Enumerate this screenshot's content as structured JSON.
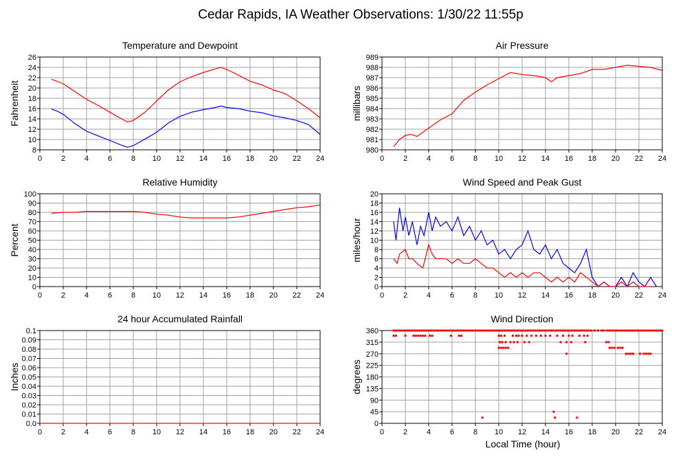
{
  "page_title": "Cedar Rapids, IA Weather Observations: 1/30/22 11:55p",
  "x_axis_label": "Local Time (hour)",
  "colors": {
    "red": "#ff0000",
    "blue": "#0000ff",
    "grid": "#a0a0a0"
  },
  "chart_data": [
    {
      "id": "temp",
      "type": "line",
      "title": "Temperature and Dewpoint",
      "xlabel": "",
      "ylabel": "Fahrenheit",
      "xlim": [
        0,
        24
      ],
      "ylim": [
        8,
        26
      ],
      "xticks": [
        0,
        2,
        4,
        6,
        8,
        10,
        12,
        14,
        16,
        18,
        20,
        22,
        24
      ],
      "yticks": [
        8,
        10,
        12,
        14,
        16,
        18,
        20,
        22,
        24,
        26
      ],
      "grid": true,
      "series": [
        {
          "color": "#ff0000",
          "x": [
            1,
            2,
            3,
            4,
            5,
            6,
            7,
            7.5,
            8,
            9,
            9.8,
            10,
            11,
            12,
            13,
            14,
            15,
            15.5,
            16,
            17,
            18,
            19,
            20,
            21,
            22,
            23,
            24
          ],
          "y": [
            21.7,
            20.8,
            19.3,
            17.8,
            16.6,
            15.3,
            14.0,
            13.4,
            13.7,
            15.3,
            17.0,
            17.5,
            19.6,
            21.2,
            22.2,
            23.0,
            23.7,
            24.0,
            23.6,
            22.5,
            21.3,
            20.6,
            19.6,
            18.9,
            17.5,
            16.0,
            14.2
          ]
        },
        {
          "color": "#0000ff",
          "x": [
            1,
            1.5,
            2,
            3,
            4,
            5,
            6,
            7,
            7.5,
            8,
            9,
            10,
            11,
            12,
            13,
            14,
            15,
            15.5,
            16,
            17,
            18,
            19,
            20,
            21,
            22,
            23,
            24
          ],
          "y": [
            15.9,
            15.5,
            14.9,
            13.1,
            11.6,
            10.7,
            9.8,
            8.9,
            8.5,
            8.8,
            10.1,
            11.4,
            13.2,
            14.5,
            15.3,
            15.8,
            16.2,
            16.5,
            16.2,
            16.0,
            15.5,
            15.2,
            14.6,
            14.2,
            13.7,
            12.9,
            11.0
          ]
        }
      ]
    },
    {
      "id": "pressure",
      "type": "line",
      "title": "Air Pressure",
      "xlabel": "",
      "ylabel": "millibars",
      "xlim": [
        0,
        24
      ],
      "ylim": [
        980,
        989
      ],
      "xticks": [
        0,
        2,
        4,
        6,
        8,
        10,
        12,
        14,
        16,
        18,
        20,
        22,
        24
      ],
      "yticks": [
        980,
        981,
        982,
        983,
        984,
        985,
        986,
        987,
        988,
        989
      ],
      "grid": true,
      "series": [
        {
          "color": "#ff0000",
          "x": [
            1,
            1.5,
            2,
            2.5,
            3,
            4,
            5,
            6,
            7,
            8,
            9,
            10,
            11,
            12,
            13,
            14,
            14.5,
            15,
            16,
            17,
            18,
            19,
            20,
            21,
            22,
            23,
            24
          ],
          "y": [
            980.3,
            981.0,
            981.4,
            981.5,
            981.3,
            982.1,
            982.9,
            983.5,
            984.8,
            985.6,
            986.3,
            986.9,
            987.5,
            987.3,
            987.2,
            987.0,
            986.6,
            987.0,
            987.2,
            987.4,
            987.8,
            987.8,
            988.0,
            988.2,
            988.1,
            988.0,
            987.7
          ]
        }
      ]
    },
    {
      "id": "humidity",
      "type": "line",
      "title": "Relative Humidity",
      "xlabel": "",
      "ylabel": "Percent",
      "xlim": [
        0,
        24
      ],
      "ylim": [
        0,
        100
      ],
      "xticks": [
        0,
        2,
        4,
        6,
        8,
        10,
        12,
        14,
        16,
        18,
        20,
        22,
        24
      ],
      "yticks": [
        0,
        10,
        20,
        30,
        40,
        50,
        60,
        70,
        80,
        90,
        100
      ],
      "grid": true,
      "series": [
        {
          "color": "#ff0000",
          "x": [
            1,
            2,
            3,
            4,
            5,
            6,
            7,
            8,
            9,
            10,
            11,
            12,
            13,
            14,
            15,
            16,
            17,
            18,
            19,
            20,
            21,
            22,
            23,
            24
          ],
          "y": [
            79,
            80,
            80,
            81,
            81,
            81,
            81,
            81,
            80,
            78,
            77,
            75,
            74,
            74,
            74,
            74,
            75,
            77,
            79,
            81,
            83,
            85,
            86,
            88
          ]
        }
      ]
    },
    {
      "id": "wind",
      "type": "line",
      "title": "Wind Speed and Peak Gust",
      "xlabel": "",
      "ylabel": "miles/hour",
      "xlim": [
        0,
        24
      ],
      "ylim": [
        0,
        20
      ],
      "xticks": [
        0,
        2,
        4,
        6,
        8,
        10,
        12,
        14,
        16,
        18,
        20,
        22,
        24
      ],
      "yticks": [
        0,
        2,
        4,
        6,
        8,
        10,
        12,
        14,
        16,
        18,
        20
      ],
      "grid": true,
      "series": [
        {
          "color": "#0000ff",
          "x": [
            1,
            1.2,
            1.5,
            1.8,
            2,
            2.3,
            2.6,
            3,
            3.3,
            3.6,
            4,
            4.3,
            4.6,
            5,
            5.5,
            6,
            6.5,
            7,
            7.5,
            8,
            8.5,
            9,
            9.5,
            10,
            10.5,
            11,
            11.5,
            12,
            12.5,
            13,
            13.5,
            14,
            14.5,
            15,
            15.5,
            16,
            16.5,
            17,
            17.5,
            18,
            18.5,
            19,
            19.5,
            20,
            20.5,
            21,
            21.5,
            22,
            22.5,
            23,
            23.5
          ],
          "y": [
            14,
            10,
            17,
            12,
            15,
            11,
            14,
            9,
            13,
            11,
            16,
            12,
            15,
            13,
            14,
            12,
            15,
            11,
            13,
            10,
            12,
            9,
            10,
            7,
            8,
            6,
            8,
            9,
            12,
            8,
            7,
            9,
            6,
            8,
            5,
            4,
            3,
            5,
            8,
            2,
            0,
            1,
            0,
            0,
            2,
            0,
            3,
            1,
            0,
            2,
            0
          ]
        },
        {
          "color": "#ff0000",
          "x": [
            1,
            1.3,
            1.5,
            2,
            2.3,
            2.6,
            3,
            3.5,
            4,
            4.3,
            4.6,
            5,
            5.5,
            6,
            6.5,
            7,
            7.5,
            8,
            8.5,
            9,
            9.5,
            10,
            10.5,
            11,
            11.5,
            12,
            12.5,
            13,
            13.5,
            14,
            14.5,
            15,
            15.5,
            16,
            16.5,
            17,
            17.5,
            18,
            18.5,
            19,
            19.5,
            20,
            20.5,
            21,
            21.5,
            22,
            22.5,
            23
          ],
          "y": [
            6,
            5,
            7,
            8,
            6,
            6,
            5,
            4,
            9,
            7,
            6,
            6,
            6,
            5,
            6,
            5,
            5,
            6,
            5,
            4,
            4,
            3,
            2,
            3,
            2,
            3,
            2,
            3,
            3,
            2,
            1,
            2,
            1,
            2,
            1,
            3,
            2,
            1,
            0,
            1,
            0,
            0,
            1,
            0,
            1,
            0,
            0,
            0
          ]
        }
      ]
    },
    {
      "id": "rain",
      "type": "line",
      "title": "24 hour Accumulated Rainfall",
      "xlabel": "",
      "ylabel": "Inches",
      "xlim": [
        0,
        24
      ],
      "ylim": [
        0,
        0.1
      ],
      "xticks": [
        0,
        2,
        4,
        6,
        8,
        10,
        12,
        14,
        16,
        18,
        20,
        22,
        24
      ],
      "yticks": [
        "0.0",
        "0.01",
        "0.02",
        "0.03",
        "0.04",
        "0.05",
        "0.06",
        "0.07",
        "0.08",
        "0.09",
        "0.1"
      ],
      "grid": true,
      "series": [
        {
          "color": "#ff0000",
          "x": [
            0,
            24
          ],
          "y": [
            0,
            0
          ]
        }
      ]
    },
    {
      "id": "direction",
      "type": "scatter",
      "title": "Wind Direction",
      "xlabel": "Local Time (hour)",
      "ylabel": "degrees",
      "xlim": [
        0,
        24
      ],
      "ylim": [
        0,
        360
      ],
      "xticks": [
        0,
        2,
        4,
        6,
        8,
        10,
        12,
        14,
        16,
        18,
        20,
        22,
        24
      ],
      "yticks": [
        0,
        45,
        90,
        135,
        180,
        225,
        270,
        315,
        360
      ],
      "grid": true,
      "series": [
        {
          "color": "#ff0000",
          "x": [
            1.0,
            1.1,
            1.2,
            1.4,
            1.6,
            1.8,
            2.0,
            2.2,
            2.4,
            2.6,
            2.8,
            3.0,
            3.2,
            3.4,
            3.6,
            3.8,
            4.0,
            4.2,
            4.4,
            4.6,
            4.8,
            5.0,
            5.2,
            5.4,
            5.6,
            5.8,
            6.0,
            6.2,
            6.4,
            6.6,
            6.8,
            7.0,
            7.2,
            7.4,
            7.6,
            7.8,
            8.0,
            8.2,
            8.4,
            8.6,
            8.8,
            9.0,
            9.2,
            9.4,
            9.6,
            9.8,
            10.0,
            10.1,
            10.3,
            10.5,
            10.7,
            10.9,
            11.1,
            11.3,
            11.5,
            11.7,
            11.9,
            12.1,
            12.3,
            12.5,
            12.7,
            12.9,
            13.1,
            13.3,
            13.5,
            13.7,
            13.9,
            14.1,
            14.3,
            14.5,
            14.7,
            14.9,
            15.1,
            15.3,
            15.5,
            15.7,
            15.9,
            16.1,
            16.3,
            16.5,
            16.7,
            16.9,
            17.1,
            17.3,
            17.5,
            17.7,
            17.9,
            18.2,
            18.5,
            18.8,
            19.0,
            19.3,
            19.5,
            19.7,
            19.9,
            20.1,
            20.3,
            20.5,
            20.7,
            20.9,
            21.1,
            21.3,
            21.5,
            21.7,
            21.9,
            22.1,
            22.3,
            22.5,
            22.7,
            22.9,
            23.1,
            23.3,
            23.5,
            23.7,
            23.9,
            24.0,
            1.0,
            1.2,
            2.0,
            2.7,
            2.9,
            3.1,
            3.3,
            3.5,
            3.7,
            4.1,
            4.3,
            5.9,
            6.6,
            6.8,
            10.0,
            10.2,
            10.5,
            11.2,
            11.5,
            11.7,
            12.0,
            12.4,
            12.8,
            13.2,
            13.6,
            14.0,
            14.4,
            15.0,
            15.5,
            16.0,
            16.3,
            16.9,
            17.3,
            17.6,
            10.1,
            10.3,
            10.6,
            11.0,
            11.3,
            11.6,
            12.2,
            12.6,
            15.3,
            15.8,
            16.2,
            17.4,
            19.2,
            19.4,
            10.0,
            10.2,
            10.4,
            10.6,
            10.8,
            19.5,
            19.7,
            19.9,
            20.2,
            20.4,
            20.6,
            15.8,
            20.9,
            21.1,
            21.3,
            21.5,
            22.1,
            22.4,
            22.6,
            22.8,
            23.0,
            8.6,
            14.7,
            14.8,
            16.7
          ],
          "y": [
            360,
            360,
            360,
            360,
            360,
            360,
            360,
            360,
            360,
            360,
            360,
            360,
            360,
            360,
            360,
            360,
            360,
            360,
            360,
            360,
            360,
            360,
            360,
            360,
            360,
            360,
            360,
            360,
            360,
            360,
            360,
            360,
            360,
            360,
            360,
            360,
            360,
            360,
            360,
            360,
            360,
            360,
            360,
            360,
            360,
            360,
            360,
            360,
            360,
            360,
            360,
            360,
            360,
            360,
            360,
            360,
            360,
            360,
            360,
            360,
            360,
            360,
            360,
            360,
            360,
            360,
            360,
            360,
            360,
            360,
            360,
            360,
            360,
            360,
            360,
            360,
            360,
            360,
            360,
            360,
            360,
            360,
            360,
            360,
            360,
            360,
            360,
            360,
            360,
            360,
            360,
            360,
            360,
            360,
            360,
            360,
            360,
            360,
            360,
            360,
            360,
            360,
            360,
            360,
            360,
            360,
            360,
            360,
            360,
            360,
            360,
            360,
            360,
            360,
            360,
            360,
            340,
            340,
            340,
            340,
            340,
            340,
            340,
            340,
            340,
            340,
            340,
            340,
            340,
            340,
            340,
            340,
            340,
            340,
            340,
            340,
            340,
            340,
            340,
            340,
            340,
            340,
            340,
            340,
            340,
            340,
            340,
            340,
            340,
            340,
            315,
            315,
            315,
            315,
            315,
            315,
            315,
            315,
            315,
            315,
            315,
            315,
            315,
            315,
            293,
            293,
            293,
            293,
            293,
            293,
            293,
            293,
            293,
            293,
            293,
            270,
            270,
            270,
            270,
            270,
            270,
            270,
            270,
            270,
            270,
            22,
            45,
            22,
            22
          ]
        }
      ]
    }
  ]
}
